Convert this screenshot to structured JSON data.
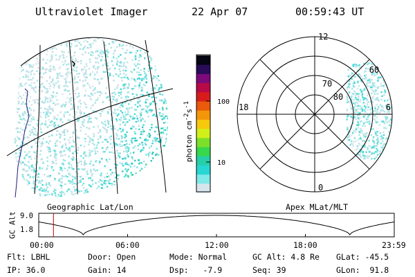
{
  "header": {
    "instrument": "Ultraviolet Imager",
    "date": "22 Apr 07",
    "time": "00:59:43 UT"
  },
  "colorbar": {
    "label_html": "photon cm<sup>-2</sup>s<sup>-1</sup>",
    "label": "photon cm-2s-1",
    "ticks": [
      "100",
      "10"
    ],
    "colors": [
      "#d6e5ec",
      "#7fe8e8",
      "#28d7d3",
      "#26cfa8",
      "#36d84c",
      "#7ce02a",
      "#d2ef1a",
      "#f5c80c",
      "#f3960a",
      "#ea5a0a",
      "#d81c1c",
      "#b80a47",
      "#7c0a7b",
      "#2a0b58",
      "#050514"
    ]
  },
  "left_panel": {
    "caption": "Geographic Lat/Lon"
  },
  "right_panel": {
    "caption": "Apex MLat/MLT",
    "mlt_labels": {
      "top": "12",
      "left": "18",
      "right": "6",
      "bottom": "0"
    },
    "lat_labels": [
      "80",
      "70",
      "60"
    ]
  },
  "altitude_plot": {
    "ylabel": "GC Alt",
    "yticks": [
      "9.0",
      "1.8"
    ],
    "xticks": [
      "00:00",
      "06:00",
      "12:00",
      "18:00",
      "23:59"
    ],
    "marker_time": "00:59:43",
    "marker_color": "#c00000"
  },
  "status": {
    "row1": [
      {
        "label": "Flt:",
        "value": "LBHL"
      },
      {
        "label": "Door:",
        "value": "Open"
      },
      {
        "label": "Mode:",
        "value": "Normal"
      },
      {
        "label": "GC Alt:",
        "value": "4.8 Re"
      },
      {
        "label": "GLat:",
        "value": "-45.5"
      }
    ],
    "row2": [
      {
        "label": "IP:",
        "value": "36.0"
      },
      {
        "label": "Gain:",
        "value": "14"
      },
      {
        "label": "Dsp:",
        "value": "-7.9"
      },
      {
        "label": "Seq:",
        "value": "39"
      },
      {
        "label": "GLon:",
        "value": "91.8"
      }
    ]
  }
}
